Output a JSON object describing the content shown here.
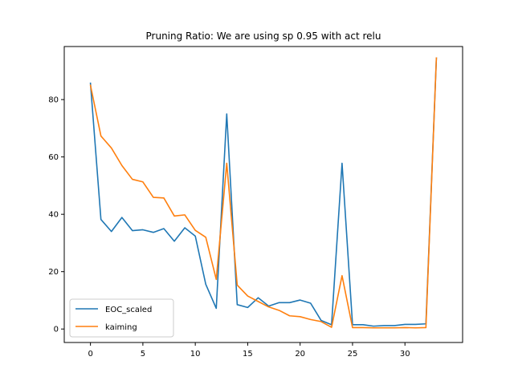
{
  "chart_data": {
    "type": "line",
    "title": "Pruning Ratio: We are using sp 0.95 with act relu",
    "xlabel": "",
    "ylabel": "",
    "xlim": [
      -2.5,
      35.5
    ],
    "ylim": [
      -4.7,
      98.5
    ],
    "xticks": [
      0,
      5,
      10,
      15,
      20,
      25,
      30
    ],
    "yticks": [
      0,
      20,
      40,
      60,
      80
    ],
    "legend_position": "lower-left",
    "grid": false,
    "x": [
      0,
      1,
      2,
      3,
      4,
      5,
      6,
      7,
      8,
      9,
      10,
      11,
      12,
      13,
      14,
      15,
      16,
      17,
      18,
      19,
      20,
      21,
      22,
      23,
      24,
      25,
      26,
      27,
      28,
      29,
      30,
      31,
      32,
      33
    ],
    "series": [
      {
        "name": "EOC_scaled",
        "color": "#1f77b4",
        "values": [
          85.7,
          38.2,
          34.0,
          38.9,
          34.3,
          34.6,
          33.7,
          35.0,
          30.6,
          35.3,
          32.4,
          15.6,
          7.2,
          75.0,
          8.5,
          7.5,
          10.9,
          8.0,
          9.2,
          9.2,
          10.1,
          9.0,
          3.0,
          1.5,
          57.8,
          1.5,
          1.5,
          1.0,
          1.2,
          1.2,
          1.6,
          1.6,
          1.8,
          94.5
        ]
      },
      {
        "name": "kaiming",
        "color": "#ff7f0e",
        "values": [
          85.0,
          67.3,
          63.1,
          57.0,
          52.2,
          51.3,
          45.9,
          45.7,
          39.4,
          39.8,
          34.4,
          32.0,
          17.3,
          57.8,
          15.3,
          11.5,
          9.6,
          7.7,
          6.5,
          4.6,
          4.3,
          3.3,
          2.6,
          0.6,
          18.6,
          0.5,
          0.5,
          0.4,
          0.4,
          0.4,
          0.5,
          0.4,
          0.5,
          94.5
        ]
      }
    ]
  }
}
